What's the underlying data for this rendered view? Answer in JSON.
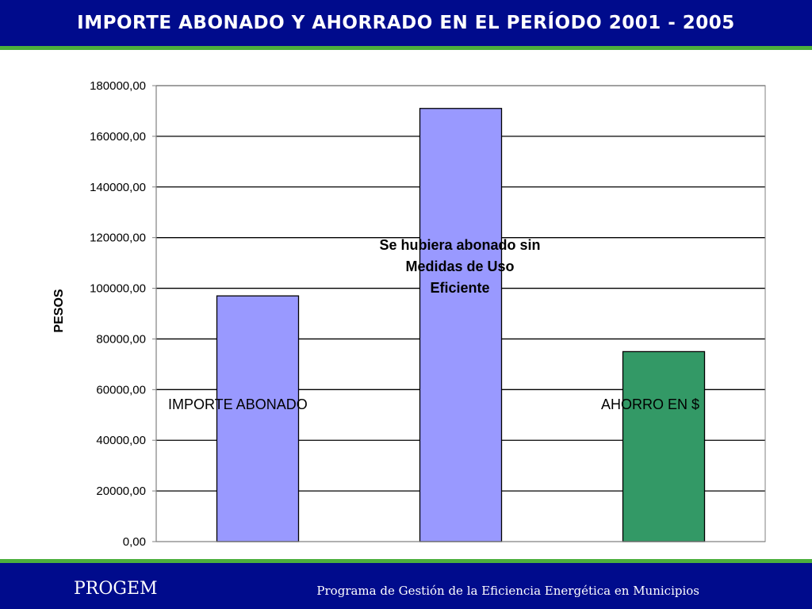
{
  "header": {
    "title": "IMPORTE ABONADO Y AHORRADO EN EL PERÍODO 2001 - 2005"
  },
  "footer": {
    "brand": "PROGEM",
    "program": "Programa de Gestión de la Eficiencia Energética en Municipios"
  },
  "colors": {
    "header_bg": "#000b8c",
    "accent_line": "#4caf3c",
    "bar_blue": "#9999ff",
    "bar_green": "#339966"
  },
  "chart_data": {
    "type": "bar",
    "title": "IMPORTE ABONADO Y AHORRADO EN EL PERÍODO 2001 - 2005",
    "ylabel": "PESOS",
    "xlabel": "",
    "ylim": [
      0,
      180000
    ],
    "grid": true,
    "yticks": [
      "0,00",
      "20000,00",
      "40000,00",
      "60000,00",
      "80000,00",
      "100000,00",
      "120000,00",
      "140000,00",
      "160000,00",
      "180000,00"
    ],
    "values": [
      97000,
      171000,
      75000
    ],
    "bar_colors": [
      "#9999ff",
      "#9999ff",
      "#339966"
    ],
    "annotations": {
      "importe": "IMPORTE ABONADO",
      "sin_medidas": [
        "Se hubiera abonado sin",
        "Medidas de Uso",
        "Eficiente"
      ],
      "ahorro": "AHORRO EN $"
    }
  }
}
